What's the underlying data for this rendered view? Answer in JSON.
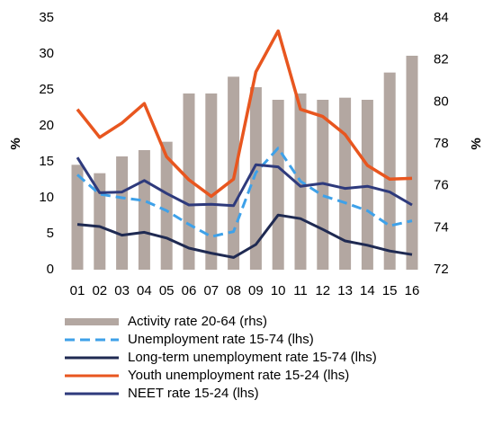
{
  "chart_data": {
    "type": "bar_line",
    "categories": [
      "01",
      "02",
      "03",
      "04",
      "05",
      "06",
      "07",
      "08",
      "09",
      "10",
      "11",
      "12",
      "13",
      "14",
      "15",
      "16"
    ],
    "y_label": "%",
    "y2_label": "%",
    "ylim": [
      0,
      35
    ],
    "yticks": [
      0,
      5,
      10,
      15,
      20,
      25,
      30,
      35
    ],
    "y2lim": [
      72,
      84
    ],
    "y2ticks": [
      72,
      74,
      76,
      78,
      80,
      82,
      84
    ],
    "series": [
      {
        "name": "Activity rate 20-64 (rhs)",
        "kind": "bar",
        "axis": "y2",
        "color": "#b3a7a1",
        "values": [
          77.0,
          76.6,
          77.4,
          77.7,
          78.1,
          80.4,
          80.4,
          81.2,
          80.7,
          80.1,
          80.4,
          80.1,
          80.2,
          80.1,
          81.4,
          82.2
        ]
      },
      {
        "name": "Unemployment rate 15-74 (lhs)",
        "kind": "dashed",
        "color": "#3ea1e9",
        "values": [
          13.2,
          10.5,
          10.0,
          9.6,
          8.2,
          6.3,
          4.6,
          5.3,
          13.5,
          16.9,
          12.3,
          10.3,
          9.3,
          8.2,
          6.1,
          6.8
        ]
      },
      {
        "name": "Long-term unemployment rate 15-74 (lhs)",
        "kind": "line",
        "color": "#1f2a52",
        "values": [
          6.3,
          6.0,
          4.8,
          5.2,
          4.4,
          3.0,
          2.3,
          1.7,
          3.5,
          7.6,
          7.1,
          5.6,
          4.0,
          3.4,
          2.6,
          2.1
        ]
      },
      {
        "name": "Youth unemployment rate 15-24 (lhs)",
        "kind": "line",
        "color": "#e8561f",
        "values": [
          22.3,
          18.4,
          20.4,
          23.1,
          15.7,
          12.5,
          10.2,
          12.6,
          27.5,
          33.2,
          22.3,
          21.3,
          18.8,
          14.5,
          12.6,
          12.7
        ]
      },
      {
        "name": "NEET rate 15-24 (lhs)",
        "kind": "line",
        "color": "#2e3a7c",
        "values": [
          15.6,
          10.7,
          10.8,
          12.4,
          10.6,
          9.0,
          9.1,
          8.9,
          14.6,
          14.3,
          11.6,
          12.0,
          11.3,
          11.6,
          10.8,
          9.0
        ]
      }
    ]
  }
}
